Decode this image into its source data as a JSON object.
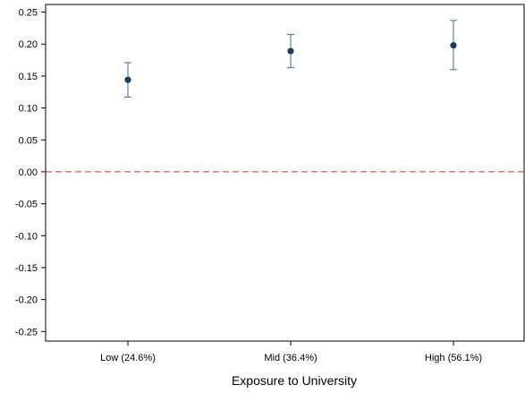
{
  "chart_data": {
    "type": "scatter",
    "xlabel": "Exposure to University",
    "ylabel": "",
    "categories": [
      "Low (24.6%)",
      "Mid (36.4%)",
      "High (56.1%)"
    ],
    "series": [
      {
        "values": [
          0.144,
          0.189,
          0.198
        ],
        "ci_lower": [
          0.117,
          0.163,
          0.16
        ],
        "ci_upper": [
          0.171,
          0.215,
          0.237
        ]
      }
    ],
    "yticks": [
      0.25,
      0.2,
      0.15,
      0.1,
      0.05,
      0.0,
      -0.05,
      -0.1,
      -0.15,
      -0.2,
      -0.25
    ],
    "ytick_labels": [
      "0.25",
      "0.20",
      "0.15",
      "0.10",
      "0.05",
      "0.00",
      "-0.05",
      "-0.10",
      "-0.15",
      "-0.20",
      "-0.25"
    ],
    "ylim": [
      -0.265,
      0.262
    ],
    "reference_line": {
      "y": 0,
      "style": "dashed",
      "color": "#c0392b"
    },
    "grid": false,
    "colors": {
      "point": "#1f3b5c",
      "errorbar": "#4a6a8a",
      "axis": "#000000"
    }
  }
}
